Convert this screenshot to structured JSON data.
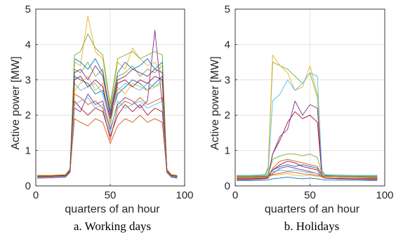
{
  "chart_data": [
    {
      "type": "line",
      "caption": "a. Working days",
      "xlabel": "quarters of an hour",
      "ylabel": "Active power [MW]",
      "xlim": [
        0,
        100
      ],
      "ylim": [
        0,
        5
      ],
      "xticks": [
        "0",
        "50",
        "100"
      ],
      "yticks": [
        "0",
        "1",
        "2",
        "3",
        "4",
        "5"
      ],
      "grid": true,
      "x": [
        1,
        10,
        20,
        23,
        26,
        30,
        35,
        40,
        45,
        50,
        55,
        60,
        65,
        70,
        75,
        80,
        85,
        88,
        91,
        95
      ],
      "series": [
        {
          "color": "#0072bd",
          "values": [
            0.25,
            0.25,
            0.28,
            0.4,
            3.1,
            3.0,
            2.9,
            2.6,
            2.7,
            1.9,
            2.6,
            2.8,
            3.0,
            2.9,
            2.7,
            2.9,
            3.1,
            0.4,
            0.28,
            0.25
          ]
        },
        {
          "color": "#d95319",
          "values": [
            0.28,
            0.27,
            0.3,
            0.45,
            2.6,
            2.5,
            2.3,
            2.4,
            2.2,
            1.3,
            2.2,
            2.4,
            2.3,
            2.5,
            2.3,
            2.4,
            2.5,
            0.42,
            0.3,
            0.28
          ]
        },
        {
          "color": "#edb120",
          "values": [
            0.3,
            0.3,
            0.32,
            0.5,
            3.5,
            3.4,
            4.8,
            3.8,
            3.6,
            2.2,
            3.5,
            3.3,
            3.9,
            3.6,
            3.4,
            3.5,
            3.2,
            0.5,
            0.32,
            0.3
          ]
        },
        {
          "color": "#7e2f8e",
          "values": [
            0.22,
            0.23,
            0.25,
            0.38,
            2.2,
            2.1,
            2.6,
            2.3,
            2.4,
            1.6,
            2.3,
            2.5,
            2.4,
            2.2,
            2.4,
            4.4,
            2.3,
            0.38,
            0.25,
            0.22
          ]
        },
        {
          "color": "#77ac30",
          "values": [
            0.26,
            0.26,
            0.29,
            0.42,
            3.3,
            3.2,
            3.5,
            3.1,
            3.3,
            2.0,
            3.1,
            3.2,
            3.4,
            3.1,
            3.3,
            3.2,
            3.4,
            0.42,
            0.29,
            0.26
          ]
        },
        {
          "color": "#4dbeee",
          "values": [
            0.24,
            0.24,
            0.27,
            0.4,
            2.9,
            2.7,
            2.8,
            2.9,
            2.6,
            1.8,
            2.7,
            2.9,
            2.8,
            2.7,
            2.9,
            2.8,
            3.0,
            0.4,
            0.27,
            0.24
          ]
        },
        {
          "color": "#a2142f",
          "values": [
            0.29,
            0.29,
            0.31,
            0.46,
            2.4,
            2.2,
            2.0,
            2.2,
            2.1,
            1.4,
            2.0,
            2.3,
            2.1,
            2.3,
            2.0,
            2.2,
            2.1,
            0.45,
            0.31,
            0.29
          ]
        },
        {
          "color": "#0072bd",
          "values": [
            0.27,
            0.27,
            0.3,
            0.44,
            3.6,
            3.5,
            3.3,
            3.6,
            3.2,
            2.1,
            3.2,
            3.5,
            3.3,
            3.4,
            3.6,
            3.3,
            3.5,
            0.44,
            0.3,
            0.27
          ]
        },
        {
          "color": "#d95319",
          "values": [
            0.25,
            0.25,
            0.28,
            0.41,
            1.9,
            1.8,
            1.7,
            1.9,
            1.8,
            1.2,
            1.7,
            1.9,
            1.8,
            2.0,
            1.8,
            1.9,
            1.8,
            0.41,
            0.28,
            0.25
          ]
        },
        {
          "color": "#edb120",
          "values": [
            0.26,
            0.26,
            0.29,
            0.43,
            2.7,
            2.9,
            3.1,
            2.7,
            2.9,
            1.7,
            2.8,
            2.6,
            2.9,
            2.8,
            2.7,
            2.8,
            2.9,
            0.43,
            0.29,
            0.26
          ]
        },
        {
          "color": "#7e2f8e",
          "values": [
            0.23,
            0.23,
            0.26,
            0.39,
            3.2,
            3.3,
            3.0,
            3.4,
            3.1,
            2.0,
            3.0,
            3.1,
            3.3,
            3.2,
            3.1,
            3.3,
            3.2,
            0.39,
            0.26,
            0.23
          ]
        },
        {
          "color": "#77ac30",
          "values": [
            0.28,
            0.28,
            0.3,
            0.45,
            3.7,
            3.8,
            4.3,
            3.9,
            3.7,
            2.3,
            3.6,
            3.7,
            3.8,
            3.6,
            3.7,
            3.8,
            3.7,
            0.45,
            0.3,
            0.28
          ]
        },
        {
          "color": "#4dbeee",
          "values": [
            0.24,
            0.24,
            0.27,
            0.4,
            2.3,
            2.4,
            2.5,
            2.2,
            2.3,
            1.5,
            2.4,
            2.2,
            2.3,
            2.4,
            2.2,
            2.3,
            2.4,
            0.4,
            0.27,
            0.24
          ]
        },
        {
          "color": "#a2142f",
          "values": [
            0.27,
            0.27,
            0.29,
            0.43,
            3.0,
            3.1,
            2.8,
            3.0,
            2.8,
            1.9,
            2.9,
            3.0,
            2.8,
            3.0,
            2.9,
            3.1,
            3.0,
            0.43,
            0.29,
            0.27
          ]
        }
      ]
    },
    {
      "type": "line",
      "caption": "b. Holidays",
      "xlabel": "quarters of an hour",
      "ylabel": "Active power [MW]",
      "xlim": [
        0,
        100
      ],
      "ylim": [
        0,
        5
      ],
      "xticks": [
        "0",
        "50",
        "100"
      ],
      "yticks": [
        "0",
        "1",
        "2",
        "3",
        "4",
        "5"
      ],
      "grid": true,
      "x": [
        1,
        10,
        20,
        22,
        25,
        30,
        35,
        40,
        45,
        50,
        55,
        58,
        60,
        70,
        80,
        90,
        95
      ],
      "series": [
        {
          "color": "#77ac30",
          "values": [
            0.28,
            0.28,
            0.3,
            0.5,
            3.5,
            3.4,
            3.3,
            3.1,
            2.9,
            3.2,
            2.5,
            0.4,
            0.3,
            0.28,
            0.28,
            0.28,
            0.28
          ]
        },
        {
          "color": "#edb120",
          "values": [
            0.3,
            0.3,
            0.32,
            0.55,
            3.7,
            3.4,
            3.2,
            2.7,
            2.8,
            3.4,
            2.6,
            0.45,
            0.32,
            0.3,
            0.3,
            0.3,
            0.3
          ]
        },
        {
          "color": "#4dbeee",
          "values": [
            0.26,
            0.26,
            0.28,
            0.4,
            2.4,
            2.6,
            3.0,
            2.7,
            2.9,
            3.2,
            3.1,
            0.4,
            0.28,
            0.26,
            0.26,
            0.26,
            0.26
          ]
        },
        {
          "color": "#a2142f",
          "values": [
            0.22,
            0.22,
            0.24,
            0.3,
            0.9,
            1.3,
            1.8,
            2.1,
            1.9,
            2.0,
            1.8,
            0.3,
            0.24,
            0.22,
            0.22,
            0.22,
            0.22
          ]
        },
        {
          "color": "#7e2f8e",
          "values": [
            0.2,
            0.2,
            0.22,
            0.28,
            0.9,
            1.4,
            1.6,
            2.4,
            2.0,
            2.3,
            2.2,
            0.28,
            0.22,
            0.2,
            0.2,
            0.2,
            0.2
          ]
        },
        {
          "color": "#0072bd",
          "values": [
            0.24,
            0.24,
            0.26,
            0.3,
            0.45,
            0.55,
            0.6,
            0.55,
            0.6,
            0.55,
            0.5,
            0.35,
            0.3,
            0.26,
            0.25,
            0.24,
            0.24
          ]
        },
        {
          "color": "#77ac30",
          "values": [
            0.25,
            0.25,
            0.27,
            0.3,
            0.75,
            0.85,
            0.9,
            0.9,
            0.85,
            0.9,
            0.8,
            0.35,
            0.28,
            0.27,
            0.26,
            0.25,
            0.25
          ]
        },
        {
          "color": "#d95319",
          "values": [
            0.2,
            0.2,
            0.22,
            0.24,
            0.5,
            0.7,
            0.75,
            0.7,
            0.65,
            0.6,
            0.55,
            0.3,
            0.24,
            0.22,
            0.21,
            0.2,
            0.2
          ]
        },
        {
          "color": "#a2142f",
          "values": [
            0.18,
            0.18,
            0.2,
            0.22,
            0.45,
            0.6,
            0.7,
            0.65,
            0.55,
            0.5,
            0.45,
            0.28,
            0.22,
            0.2,
            0.19,
            0.18,
            0.18
          ]
        },
        {
          "color": "#7e2f8e",
          "values": [
            0.2,
            0.2,
            0.21,
            0.23,
            0.35,
            0.5,
            0.55,
            0.5,
            0.45,
            0.4,
            0.35,
            0.25,
            0.22,
            0.21,
            0.2,
            0.2,
            0.2
          ]
        },
        {
          "color": "#4dbeee",
          "values": [
            0.3,
            0.3,
            0.32,
            0.34,
            0.4,
            0.45,
            0.42,
            0.45,
            0.4,
            0.38,
            0.35,
            0.33,
            0.32,
            0.31,
            0.3,
            0.3,
            0.3
          ]
        },
        {
          "color": "#edb120",
          "values": [
            0.22,
            0.22,
            0.24,
            0.26,
            0.3,
            0.32,
            0.35,
            0.3,
            0.28,
            0.3,
            0.27,
            0.25,
            0.24,
            0.23,
            0.22,
            0.22,
            0.22
          ]
        },
        {
          "color": "#0072bd",
          "values": [
            0.15,
            0.15,
            0.16,
            0.17,
            0.2,
            0.22,
            0.25,
            0.22,
            0.2,
            0.22,
            0.2,
            0.18,
            0.17,
            0.16,
            0.16,
            0.15,
            0.15
          ]
        },
        {
          "color": "#d95319",
          "values": [
            0.26,
            0.26,
            0.27,
            0.28,
            0.32,
            0.36,
            0.4,
            0.38,
            0.34,
            0.33,
            0.3,
            0.28,
            0.27,
            0.27,
            0.26,
            0.26,
            0.26
          ]
        }
      ]
    }
  ]
}
